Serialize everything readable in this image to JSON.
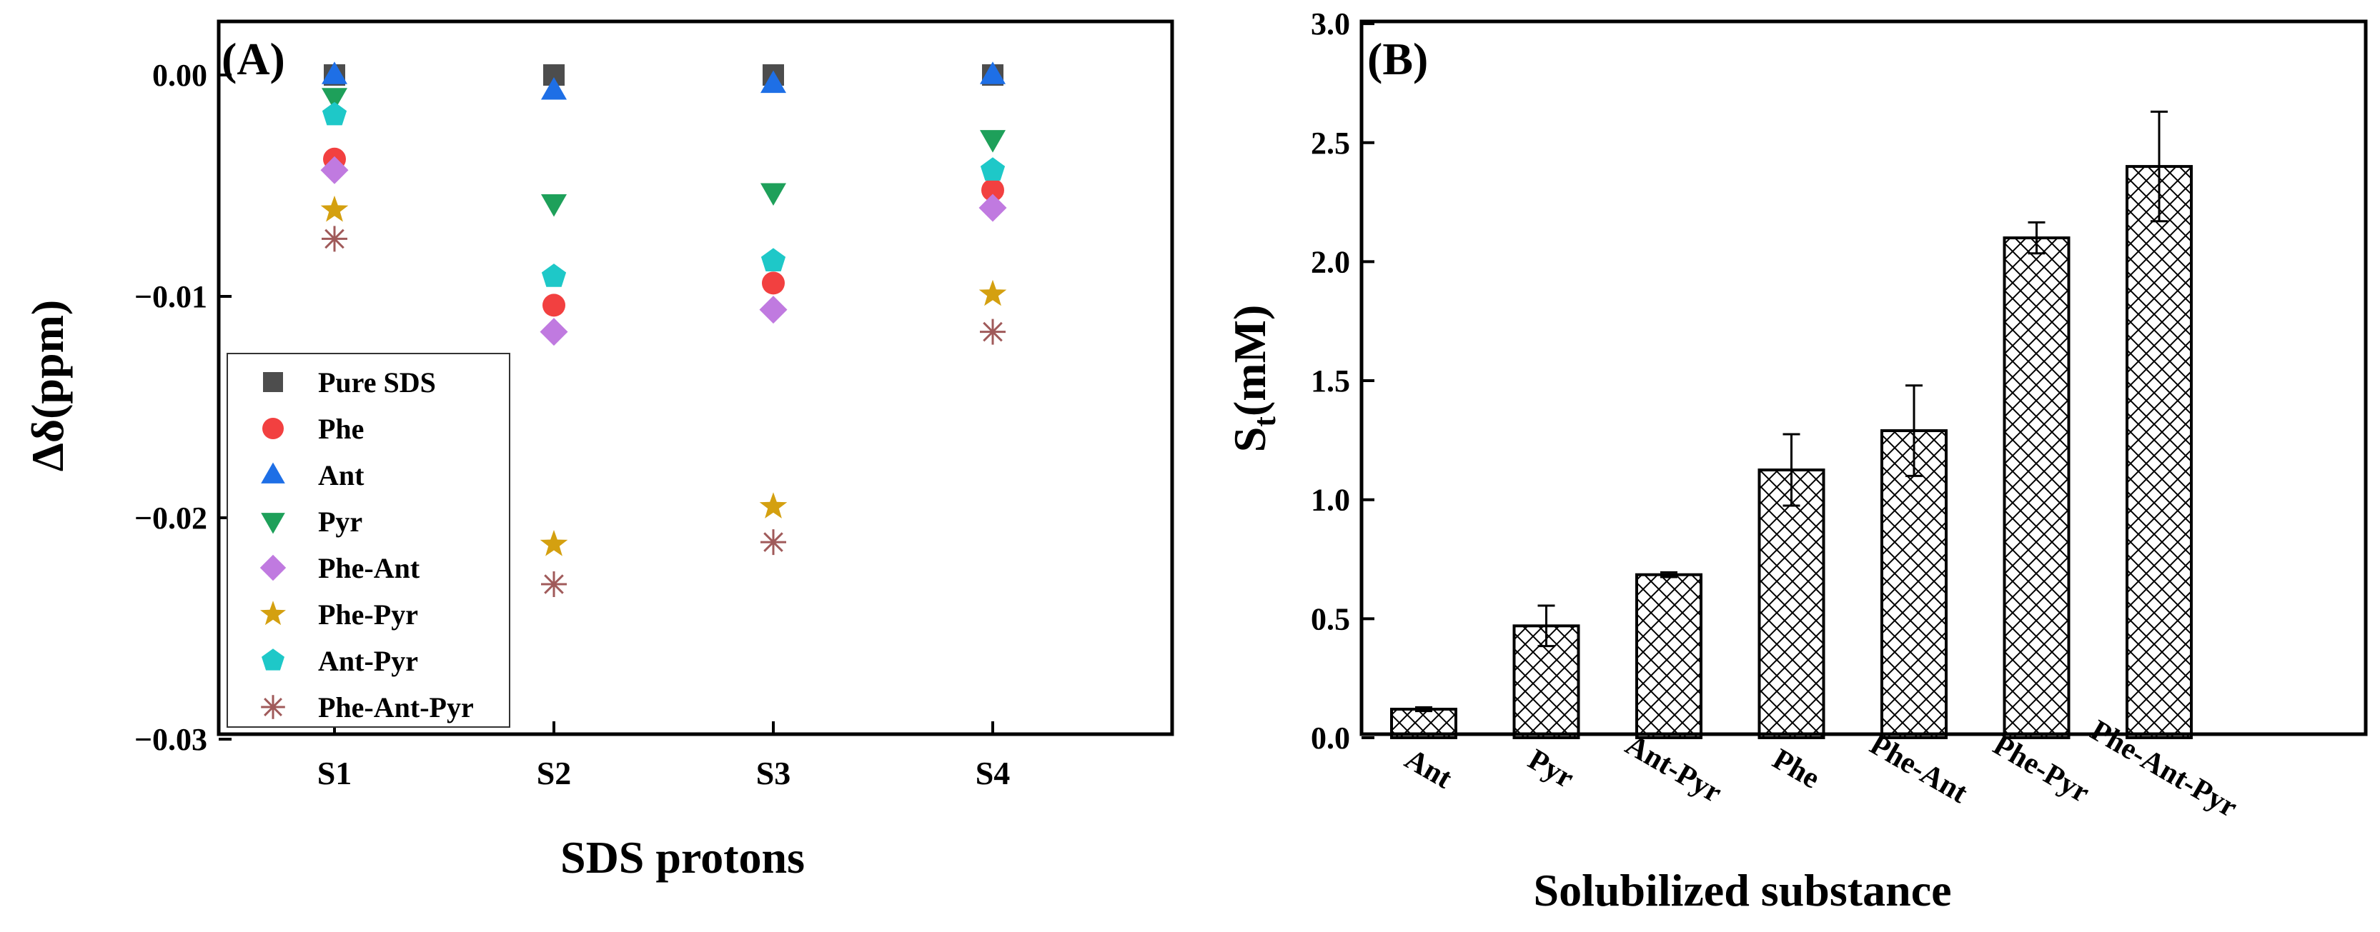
{
  "chart_data": [
    {
      "panel_label": "(A)",
      "type": "scatter",
      "xlabel": "SDS protons",
      "ylabel": "Δδ(ppm)",
      "categories": [
        "S1",
        "S2",
        "S3",
        "S4"
      ],
      "ylim": [
        -0.03,
        0.0025
      ],
      "yticks": [
        0.0,
        -0.01,
        -0.02,
        -0.03
      ],
      "ytick_labels": [
        "0.00",
        "−0.01",
        "−0.02",
        "−0.03"
      ],
      "legend_position": "bottom-left",
      "series": [
        {
          "name": "Pure SDS",
          "marker": "square",
          "color": "#4d4d4d",
          "values": [
            0.0,
            0.0,
            0.0,
            0.0
          ]
        },
        {
          "name": "Phe",
          "marker": "circle",
          "color": "#f24040",
          "values": [
            -0.0038,
            -0.0104,
            -0.0094,
            -0.0052
          ]
        },
        {
          "name": "Ant",
          "marker": "triangle-up",
          "color": "#1e6fe6",
          "values": [
            0.0,
            -0.0007,
            -0.0004,
            0.0
          ]
        },
        {
          "name": "Pyr",
          "marker": "triangle-down",
          "color": "#1ea05a",
          "values": [
            -0.001,
            -0.0058,
            -0.0053,
            -0.0029
          ]
        },
        {
          "name": "Phe-Ant",
          "marker": "diamond",
          "color": "#c07ae0",
          "values": [
            -0.0043,
            -0.0116,
            -0.0106,
            -0.006
          ]
        },
        {
          "name": "Phe-Pyr",
          "marker": "star",
          "color": "#d4a010",
          "values": [
            -0.0061,
            -0.0212,
            -0.0195,
            -0.0099
          ]
        },
        {
          "name": "Ant-Pyr",
          "marker": "pentagon",
          "color": "#1ec8c8",
          "values": [
            -0.0018,
            -0.0091,
            -0.0084,
            -0.0043
          ]
        },
        {
          "name": "Phe-Ant-Pyr",
          "marker": "asterisk",
          "color": "#a05a5a",
          "values": [
            -0.0074,
            -0.023,
            -0.0211,
            -0.0116
          ]
        }
      ]
    },
    {
      "panel_label": "(B)",
      "type": "bar",
      "xlabel": "Solubilized substance",
      "ylabel_main": "S",
      "ylabel_sub": "t",
      "ylabel_rest": "(mM)",
      "categories": [
        "Ant",
        "Pyr",
        "Ant-Pyr",
        "Phe",
        "Phe-Ant",
        "Phe-Pyr",
        "Phe-Ant-Pyr"
      ],
      "values": [
        0.12,
        0.47,
        0.685,
        1.125,
        1.29,
        2.1,
        2.4
      ],
      "errors": [
        0.008,
        0.085,
        0.01,
        0.15,
        0.19,
        0.065,
        0.23
      ],
      "ylim": [
        0,
        3.0
      ],
      "yticks": [
        0.0,
        0.5,
        1.0,
        1.5,
        2.0,
        2.5,
        3.0
      ],
      "ytick_labels": [
        "0.0",
        "0.5",
        "1.0",
        "1.5",
        "2.0",
        "2.5",
        "3.0"
      ],
      "bar_fill": "crosshatch"
    }
  ]
}
